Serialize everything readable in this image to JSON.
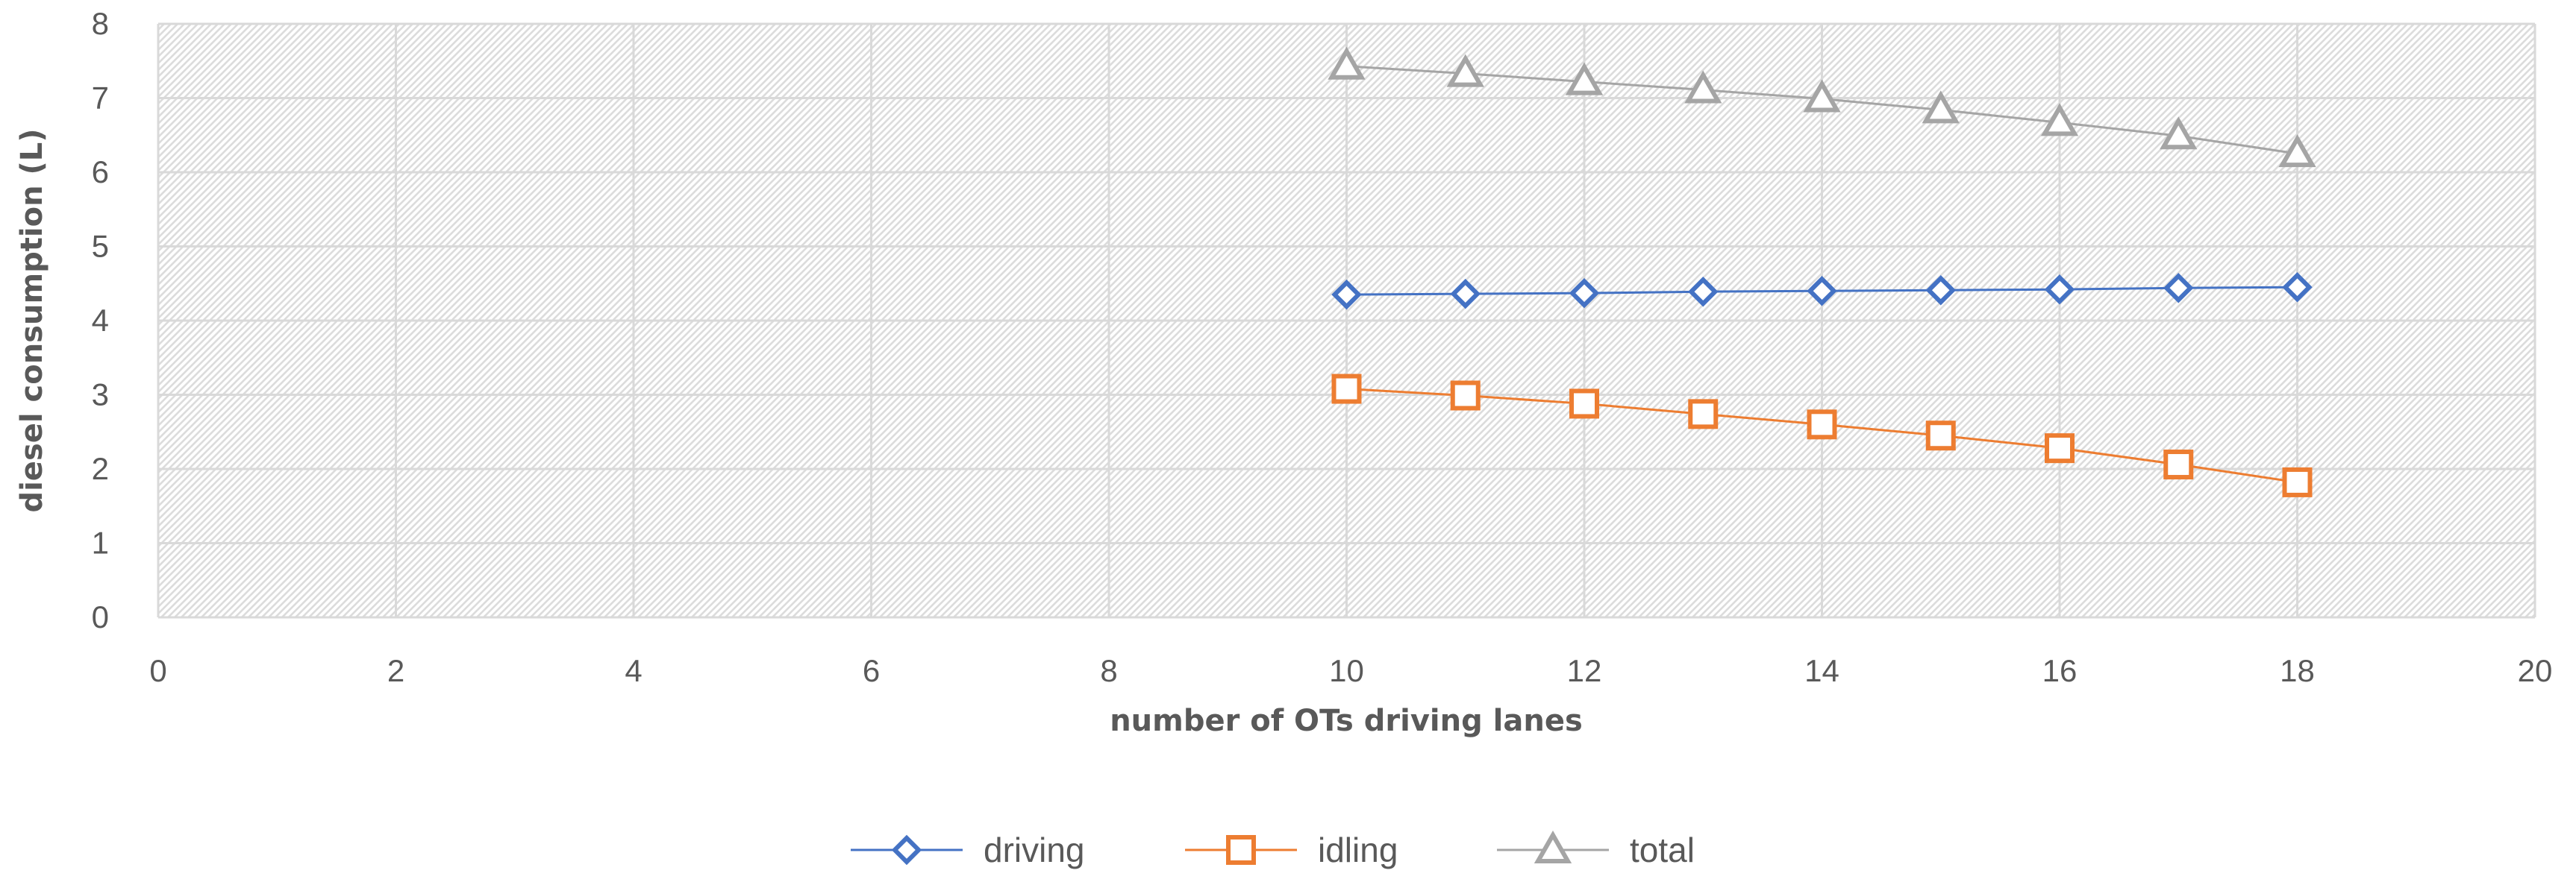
{
  "chart_data": {
    "type": "line",
    "title": "",
    "xlabel": "number of OTs driving lanes",
    "ylabel": "diesel consumption (L)",
    "xlim": [
      0,
      20
    ],
    "ylim": [
      0,
      8
    ],
    "xticks": [
      0,
      2,
      4,
      6,
      8,
      10,
      12,
      14,
      16,
      18,
      20
    ],
    "yticks": [
      0,
      1,
      2,
      3,
      4,
      5,
      6,
      7,
      8
    ],
    "grid": true,
    "legend_position": "bottom-center",
    "x": [
      10,
      11,
      12,
      13,
      14,
      15,
      16,
      17,
      18
    ],
    "series": [
      {
        "name": "driving",
        "marker": "diamond",
        "color": "#4472C4",
        "values": [
          4.35,
          4.36,
          4.37,
          4.39,
          4.4,
          4.41,
          4.42,
          4.44,
          4.45
        ]
      },
      {
        "name": "idling",
        "marker": "square",
        "color": "#ED7D31",
        "values": [
          3.08,
          2.99,
          2.88,
          2.74,
          2.6,
          2.45,
          2.28,
          2.06,
          1.82
        ]
      },
      {
        "name": "total",
        "marker": "triangle",
        "color": "#A5A5A5",
        "values": [
          7.43,
          7.33,
          7.22,
          7.11,
          6.99,
          6.84,
          6.67,
          6.49,
          6.25
        ]
      }
    ]
  }
}
